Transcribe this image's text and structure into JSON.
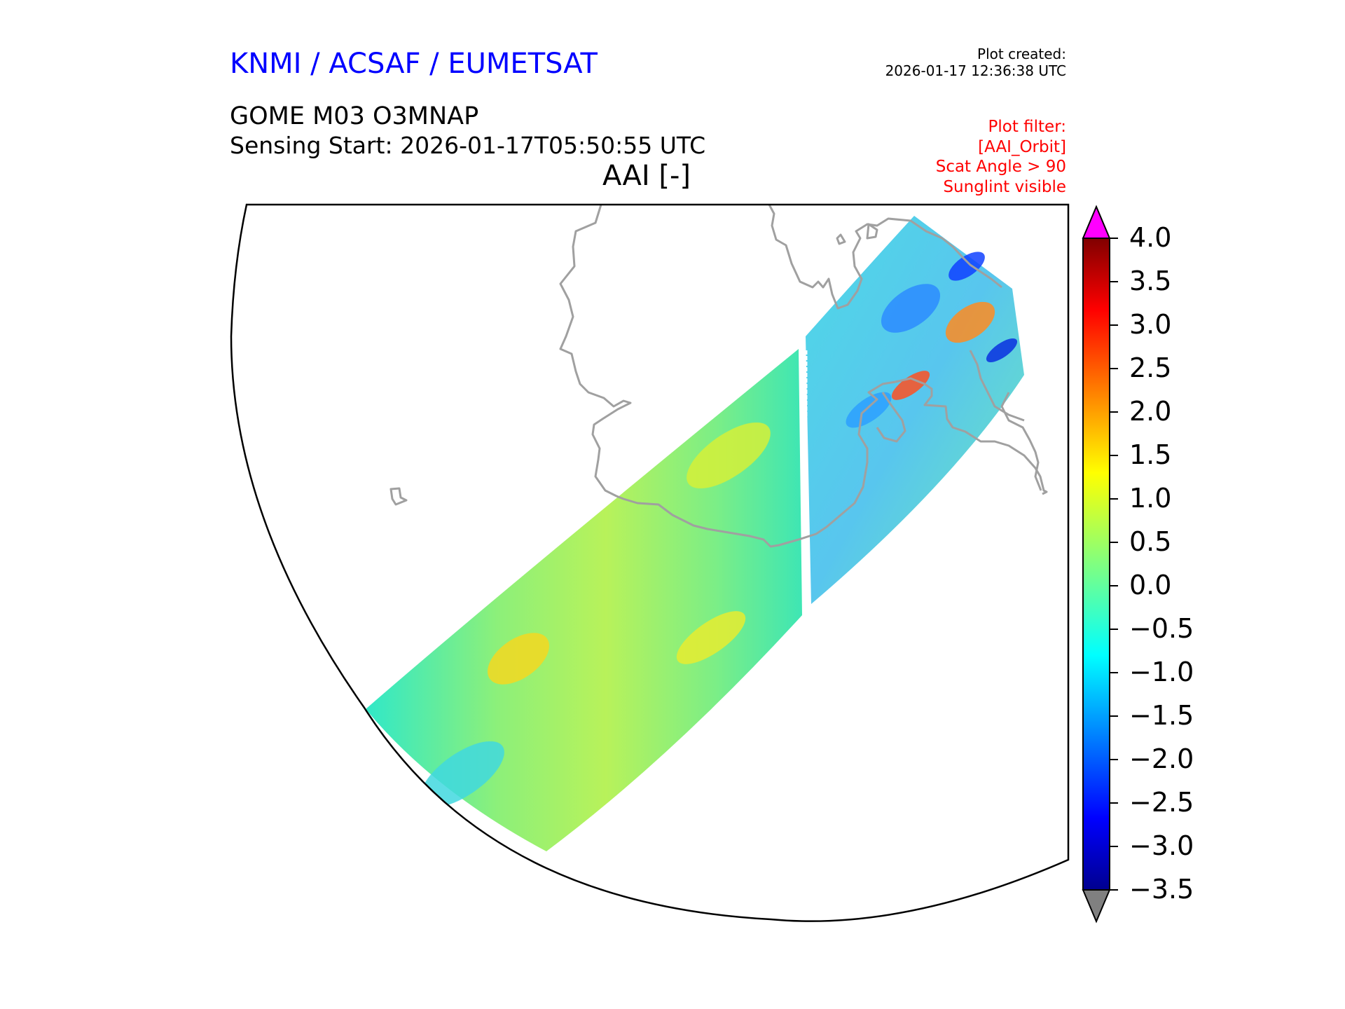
{
  "header": {
    "organization": "KNMI / ACSAF / EUMETSAT",
    "plot_created_label": "Plot created:",
    "plot_created_timestamp": "2026-01-17 12:36:38 UTC",
    "product": "GOME M03 O3MNAP",
    "sensing_start": "Sensing Start: 2026-01-17T05:50:55 UTC",
    "variable_title": "AAI [-]"
  },
  "plot_filter": {
    "lines": [
      "Plot filter:",
      "[AAI_Orbit]",
      "Scat Angle > 90",
      "Sunglint visible"
    ]
  },
  "colorbar": {
    "min": -3.5,
    "max": 4.0,
    "ticks": [
      "4.0",
      "3.5",
      "3.0",
      "2.5",
      "2.0",
      "1.5",
      "1.0",
      "0.5",
      "0.0",
      "−0.5",
      "−1.0",
      "−1.5",
      "−2.0",
      "−2.5",
      "−3.0",
      "−3.5"
    ],
    "over_color": "#ff00ff",
    "under_color": "#808080",
    "colormap": "jet"
  },
  "colors": {
    "coastline": "#a0a0a0",
    "title_blue": "#0000ff",
    "filter_red": "#ff0000"
  }
}
